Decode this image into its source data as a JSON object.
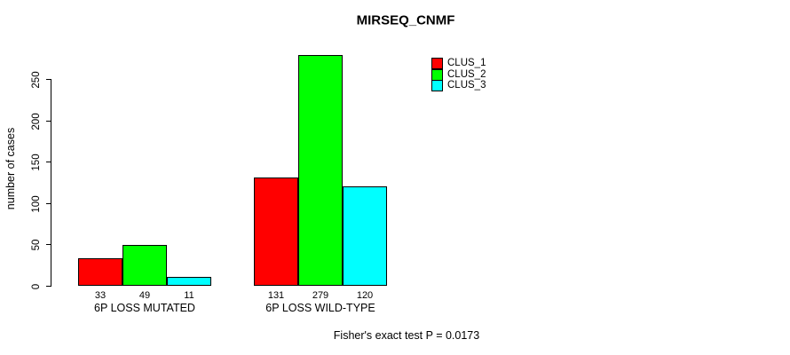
{
  "chart_data": {
    "type": "bar",
    "title": "MIRSEQ_CNMF",
    "xlabel": "",
    "ylabel": "number of cases",
    "categories": [
      "6P LOSS MUTATED",
      "6P LOSS WILD-TYPE"
    ],
    "series": [
      {
        "name": "CLUS_1",
        "color": "#ff0000",
        "values": [
          33,
          131
        ]
      },
      {
        "name": "CLUS_2",
        "color": "#00ff00",
        "values": [
          49,
          279
        ]
      },
      {
        "name": "CLUS_3",
        "color": "#00ffff",
        "values": [
          11,
          120
        ]
      }
    ],
    "bar_value_labels": [
      [
        "33",
        "49",
        "11"
      ],
      [
        "131",
        "279",
        "120"
      ]
    ],
    "yticks": [
      0,
      50,
      100,
      150,
      200,
      250
    ],
    "ylim": [
      0,
      250
    ],
    "grid": false,
    "legend_position": "top-right",
    "bar_border_color": "#000000"
  },
  "annotation": {
    "text": "Fisher's exact test P = 0.0173"
  }
}
